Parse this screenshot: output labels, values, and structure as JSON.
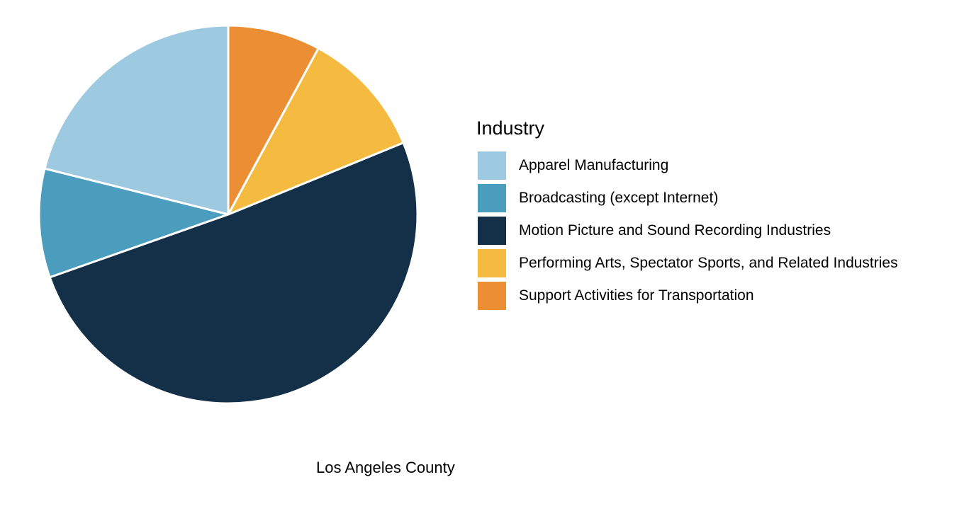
{
  "chart_data": {
    "type": "pie",
    "title": "",
    "caption": "Los Angeles County",
    "legend_title": "Industry",
    "legend_position": "right",
    "start": "top",
    "direction": "counterclockwise",
    "slices": [
      {
        "label": "Apparel Manufacturing",
        "value": 21.1,
        "color": "#9ecae1"
      },
      {
        "label": "Broadcasting (except Internet)",
        "value": 9.3,
        "color": "#4b9dbd"
      },
      {
        "label": "Motion Picture and Sound Recording Industries",
        "value": 50.8,
        "color": "#133048"
      },
      {
        "label": "Performing Arts, Spectator Sports, and Related Industries",
        "value": 10.9,
        "color": "#f5bb41"
      },
      {
        "label": "Support Activities for Transportation",
        "value": 7.9,
        "color": "#ec8e33"
      }
    ]
  }
}
